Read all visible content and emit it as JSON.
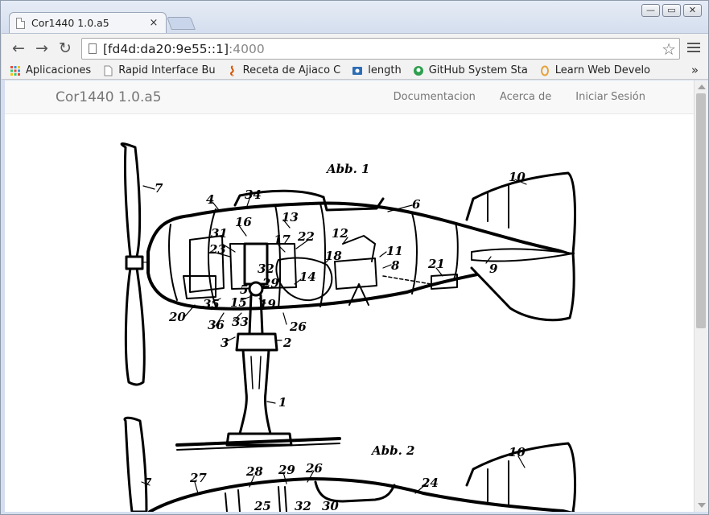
{
  "browser": {
    "tab_title": "Cor1440 1.0.a5",
    "tab_close": "×",
    "window_buttons": {
      "minimize": "—",
      "maximize": "▭",
      "close": "✕"
    },
    "url_host": "[fd4d:da20:9e55::1]",
    "url_port": ":4000",
    "nav": {
      "back": "←",
      "forward": "→",
      "reload": "↻"
    },
    "star": "☆",
    "bookmarks": [
      {
        "label": "Aplicaciones",
        "icon": "apps-grid-icon"
      },
      {
        "label": "Rapid Interface Bu",
        "icon": "page-icon"
      },
      {
        "label": "Receta de Ajiaco C",
        "icon": "recipe-icon"
      },
      {
        "label": "length",
        "icon": "doc-icon"
      },
      {
        "label": "GitHub System Sta",
        "icon": "github-icon"
      },
      {
        "label": "Learn Web Develo",
        "icon": "learn-icon"
      }
    ],
    "bookmarks_more": "»"
  },
  "site": {
    "brand": "Cor1440 1.0.a5",
    "nav_links": [
      "Documentacion",
      "Acerca de",
      "Iniciar Sesión"
    ]
  },
  "drawing": {
    "caption_1": "Abb. 1",
    "caption_2": "Abb. 2",
    "labels_fig1": [
      "7",
      "4",
      "34",
      "13",
      "22",
      "12",
      "6",
      "10",
      "31",
      "16",
      "17",
      "18",
      "11",
      "8",
      "21",
      "9",
      "23",
      "15",
      "14",
      "35",
      "19",
      "20",
      "36",
      "3",
      "2",
      "1",
      "26",
      "33",
      "32",
      "29",
      "5"
    ],
    "labels_fig2": [
      "7",
      "27",
      "28",
      "29",
      "26",
      "24",
      "10",
      "25",
      "32",
      "30"
    ]
  },
  "colors": {
    "chrome_frame": "#d4deee",
    "navbar_bg": "#f8f8f8",
    "brand_text": "#777777",
    "ink": "#000000"
  }
}
